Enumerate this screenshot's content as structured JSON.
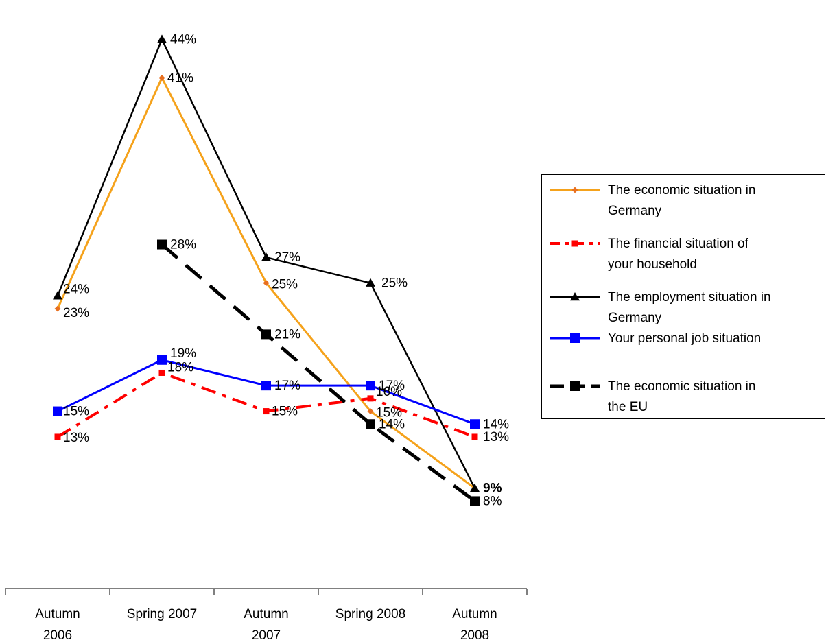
{
  "chart_data": {
    "type": "line",
    "categories": [
      [
        "Autumn",
        "2006"
      ],
      [
        "Spring 2007"
      ],
      [
        "Autumn",
        "2007"
      ],
      [
        "Spring 2008"
      ],
      [
        "Autumn",
        "2008"
      ]
    ],
    "ylim": [
      0,
      46
    ],
    "grid": false,
    "legend_position": "right",
    "series": [
      {
        "name": "The economic situation in Germany",
        "values": [
          23,
          41,
          25,
          15,
          9
        ],
        "labels": [
          "23%",
          "41%",
          "25%",
          "15%",
          ""
        ],
        "color": "#f5a21b",
        "marker_color": "#e87020",
        "marker": "diamond",
        "dash": "solid",
        "width": 3
      },
      {
        "name": "The financial situation of your household",
        "values": [
          13,
          18,
          15,
          16,
          13
        ],
        "labels": [
          "13%",
          "18%",
          "15%",
          "16%",
          "13%"
        ],
        "color": "#ff0000",
        "marker_color": "#ff0000",
        "marker": "square-small",
        "dash": "dashdot",
        "width": 4
      },
      {
        "name": "The employment situation in Germany",
        "values": [
          24,
          44,
          27,
          25,
          9
        ],
        "labels": [
          "24%",
          "44%",
          "27%",
          "25%",
          "9%"
        ],
        "color": "#000000",
        "marker_color": "#000000",
        "marker": "triangle",
        "dash": "solid",
        "width": 2.5
      },
      {
        "name": "Your personal job situation",
        "values": [
          15,
          19,
          17,
          17,
          14
        ],
        "labels": [
          "15%",
          "19%",
          "17%",
          "17%",
          "14%"
        ],
        "color": "#0000ff",
        "marker_color": "#0000ff",
        "marker": "square",
        "dash": "solid",
        "width": 3
      },
      {
        "name": "The economic situation in the EU",
        "values": [
          null,
          28,
          21,
          14,
          8
        ],
        "labels": [
          "",
          "28%",
          "21%",
          "14%",
          "8%"
        ],
        "color": "#000000",
        "marker_color": "#000000",
        "marker": "square",
        "dash": "dash",
        "width": 5
      }
    ]
  },
  "legend": {
    "items": [
      {
        "line1": "The economic situation in",
        "line2": "Germany"
      },
      {
        "line1": "The financial situation of",
        "line2": "your household"
      },
      {
        "line1": "The employment situation in",
        "line2": "Germany"
      },
      {
        "line1": "Your personal job situation",
        "line2": ""
      },
      {
        "line1": "The economic situation in",
        "line2": "the EU"
      }
    ]
  }
}
